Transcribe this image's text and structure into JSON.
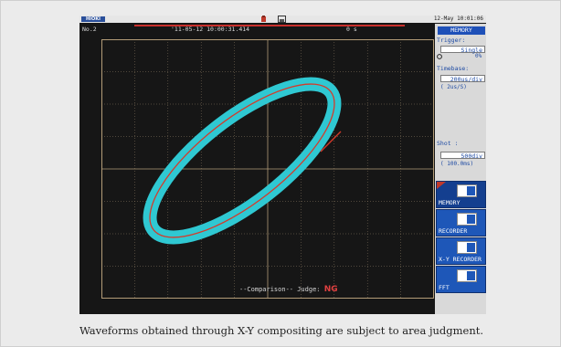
{
  "header": {
    "logo": "HIOKI",
    "datetime": "12-May 10:01:06"
  },
  "waveform": {
    "channel": "No.2",
    "trigger_time": "'11-05-12 10:00:31.414",
    "position": "0 s"
  },
  "judgment": {
    "label": "--Comparison--  Judge:",
    "result": "NG"
  },
  "panel": {
    "mode_title": "MEMORY",
    "trigger_label": "Trigger:",
    "trigger_value": "Single",
    "trigger_extra": "0%",
    "timebase_label": "Timebase:",
    "timebase_value": "200us/div",
    "timebase_rate": "( 2us/S)",
    "shot_label": "Shot   :",
    "shot_value": "500div",
    "shot_time": "( 100.0ms)"
  },
  "modes": [
    {
      "label": "MEMORY"
    },
    {
      "label": "RECORDER"
    },
    {
      "label": "X-Y RECORDER"
    },
    {
      "label": "FFT"
    }
  ],
  "caption": "Waveforms obtained through X-Y compositing are subject to area judgment.",
  "colors": {
    "screen_bg": "#161616",
    "area_fill": "#2fc8d2",
    "trace": "#d43a2a",
    "accent_blue": "#1e57b8"
  }
}
